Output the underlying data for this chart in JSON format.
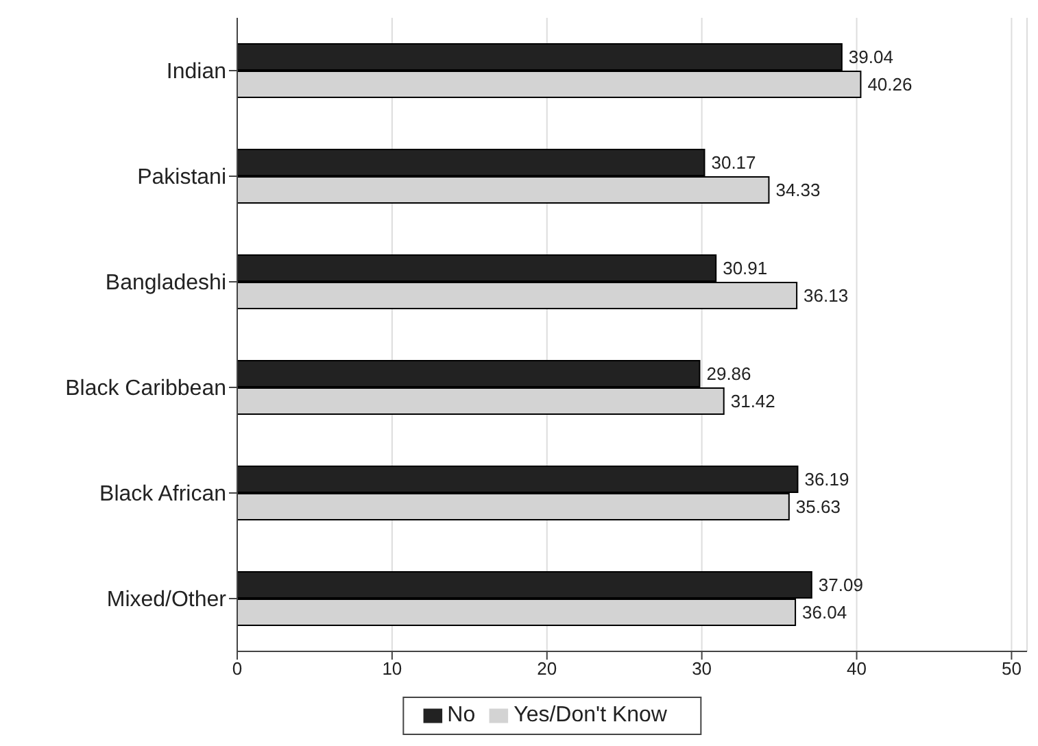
{
  "chart_data": {
    "type": "bar",
    "orientation": "horizontal",
    "categories": [
      "Indian",
      "Pakistani",
      "Bangladeshi",
      "Black Caribbean",
      "Black African",
      "Mixed/Other"
    ],
    "series": [
      {
        "name": "No",
        "color": "#222222",
        "values": [
          39.04,
          30.17,
          30.91,
          29.86,
          36.19,
          37.09
        ]
      },
      {
        "name": "Yes/Don't Know",
        "color": "#d3d3d3",
        "values": [
          40.26,
          34.33,
          36.13,
          31.42,
          35.63,
          36.04
        ]
      }
    ],
    "xlim": [
      0,
      51
    ],
    "xticks": [
      0,
      10,
      20,
      30,
      40,
      50
    ],
    "grid": "x",
    "legend": "bottom",
    "data_labels": true
  }
}
